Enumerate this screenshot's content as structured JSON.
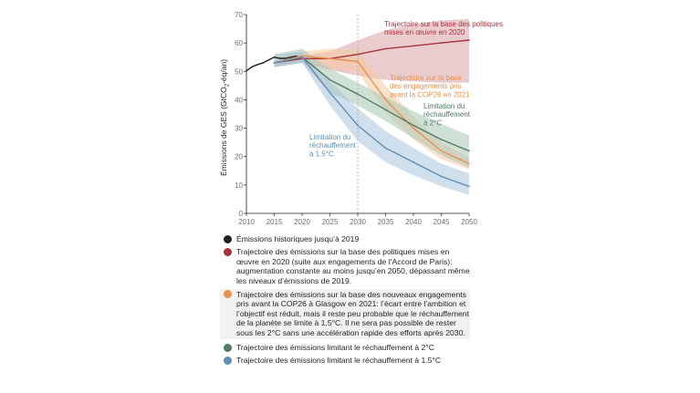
{
  "chart_data": {
    "type": "line",
    "ylabel": "Émissions de GES (GtCO₂-éq/an)",
    "ylabel_parts": [
      "Émissions de GES (GtCO",
      "2",
      "-éq/an)"
    ],
    "xlim": [
      2010,
      2050
    ],
    "ylim": [
      0,
      70
    ],
    "x_ticks": [
      "2010",
      "2015",
      "2020",
      "2025",
      "2030",
      "2035",
      "2040",
      "2045",
      "2050"
    ],
    "y_ticks": [
      "0",
      "10",
      "20",
      "30",
      "40",
      "50",
      "60",
      "70"
    ],
    "grid": false,
    "reference_line": {
      "x": 2030,
      "style": "dashed"
    },
    "series": [
      {
        "key": "historical",
        "color": "#231f20",
        "x": [
          2010,
          2011,
          2012,
          2013,
          2014,
          2015,
          2016,
          2017,
          2018,
          2019
        ],
        "y": [
          50.2,
          51.6,
          52.4,
          53.0,
          54.0,
          55.0,
          54.6,
          54.6,
          55.0,
          55.4
        ]
      },
      {
        "key": "current_policies",
        "color": "#a8333a",
        "band_color": "#d9a3a6",
        "x": [
          2015,
          2020,
          2025,
          2030,
          2035,
          2040,
          2045,
          2050
        ],
        "y": [
          53.0,
          54.5,
          54.5,
          56.0,
          58.0,
          59.0,
          60.0,
          61.0
        ],
        "low": [
          51.5,
          53.0,
          50.5,
          48.5,
          47.0,
          46.5,
          46.0,
          46.0
        ],
        "high": [
          54.5,
          55.5,
          57.0,
          61.0,
          64.5,
          66.5,
          68.0,
          68.5
        ]
      },
      {
        "key": "cop26_pledges",
        "color": "#e8914d",
        "band_color": "#f5c9a2",
        "x": [
          2015,
          2020,
          2025,
          2030,
          2035,
          2040,
          2045,
          2050
        ],
        "y": [
          53.0,
          55.5,
          54.5,
          53.5,
          40.0,
          30.0,
          22.0,
          17.5
        ],
        "low": [
          51.5,
          54.0,
          51.0,
          50.0,
          35.5,
          26.0,
          19.0,
          15.5
        ],
        "high": [
          54.5,
          57.0,
          58.0,
          57.5,
          45.0,
          34.0,
          25.0,
          19.5
        ]
      },
      {
        "key": "limit_2c",
        "color": "#4d7e62",
        "band_color": "#a7c9b3",
        "x": [
          2015,
          2020,
          2025,
          2030,
          2035,
          2040,
          2045,
          2050
        ],
        "y": [
          53.0,
          55.0,
          47.0,
          42.0,
          36.5,
          31.0,
          26.0,
          22.0
        ],
        "low": [
          51.5,
          53.0,
          42.5,
          38.0,
          32.5,
          26.5,
          20.5,
          16.0
        ],
        "high": [
          56.0,
          58.0,
          51.0,
          46.0,
          41.0,
          36.0,
          31.5,
          27.5
        ]
      },
      {
        "key": "limit_1_5c",
        "color": "#5e8fb5",
        "band_color": "#a9c5dc",
        "x": [
          2015,
          2020,
          2025,
          2030,
          2035,
          2040,
          2045,
          2050
        ],
        "y": [
          53.0,
          55.0,
          42.5,
          31.0,
          23.0,
          18.0,
          13.0,
          9.5
        ],
        "low": [
          51.5,
          53.0,
          38.0,
          25.5,
          18.0,
          13.5,
          9.5,
          6.5
        ],
        "high": [
          56.0,
          57.0,
          46.5,
          37.0,
          29.0,
          23.0,
          17.5,
          14.0
        ]
      }
    ],
    "annotations": [
      {
        "key": "current_policies",
        "lines": [
          "Trajectoire sur la base des politiques",
          "mises en œuvre en 2020"
        ],
        "color": "#a8333a"
      },
      {
        "key": "cop26_pledges",
        "lines": [
          "Trajectoire sur la base",
          "des engagements pris",
          "avant la COP26 en 2021"
        ],
        "color": "#e8914d"
      },
      {
        "key": "limit_2c",
        "lines": [
          "Limitation du",
          "réchauffement",
          "à 2°C"
        ],
        "color": "#4d7e62"
      },
      {
        "key": "limit_1_5c",
        "lines": [
          "Limitation du",
          "réchauffement",
          "à 1.5°C"
        ],
        "color": "#5e8fb5"
      }
    ],
    "legend": [
      {
        "key": "historical",
        "color": "#231f20",
        "boxed": false,
        "text": "Émissions historiques jusqu’à 2019"
      },
      {
        "key": "current_policies",
        "color": "#a8333a",
        "boxed": false,
        "text": "Trajectoire des émissions sur la base des politiques mises en œuvre en 2020 (suite aux engagements de l’Accord de Paris): augmentation constante au moins jusqu’en 2050, dépassant même les niveaux d’émissions de 2019."
      },
      {
        "key": "cop26_pledges",
        "color": "#e8914d",
        "boxed": true,
        "text": "Trajectoire des émissions sur la base des nouveaux engagements pris avant la COP26 à Glasgow en 2021: l’écart entre l’ambition et l’objectif est réduit, mais il reste peu probable que le réchauffement de la planète se limite à 1,5°C. Il ne sera pas possible de rester sous les 2°C sans une accélération rapide des efforts après 2030."
      },
      {
        "key": "limit_2c",
        "color": "#4d7e62",
        "boxed": false,
        "text": "Trajectoire des émissions limitant le réchauffement à 2°C"
      },
      {
        "key": "limit_1_5c",
        "color": "#5e8fb5",
        "boxed": false,
        "text": "Trajectoire des émissions limitant le réchauffement à 1.5°C"
      }
    ]
  }
}
